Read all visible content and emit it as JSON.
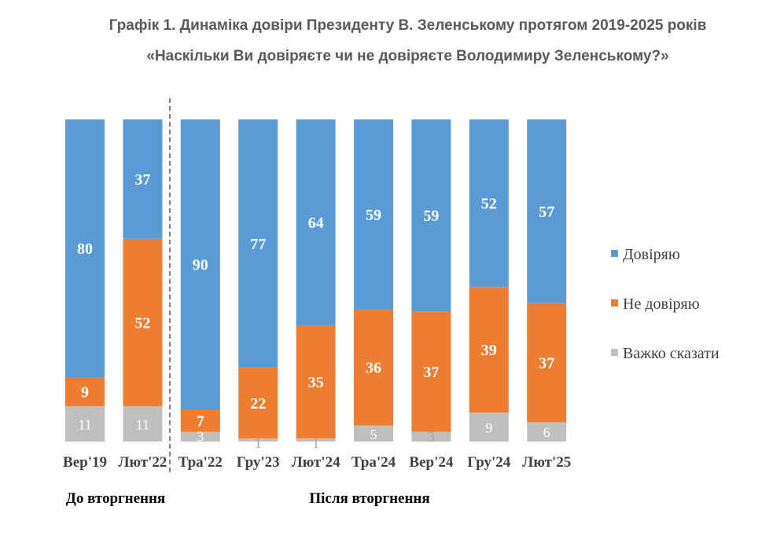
{
  "title": "Графік 1. Динаміка довіри Президенту В. Зеленському протягом 2019-2025 років",
  "subtitle": "«Наскільки Ви довіряєте чи не довіряєте Володимиру Зеленському?»",
  "periods": {
    "before": "До вторгнення",
    "after": "Після вторгнення"
  },
  "colors": {
    "trust": "#5B9BD5",
    "distrust": "#ED7D31",
    "hard": "#BFBFBF",
    "divider": "#7f7f7f"
  },
  "chart_data": {
    "type": "bar",
    "stacked": true,
    "percent_stacked": true,
    "categories": [
      "Вер'19",
      "Лют'22",
      "Тра'22",
      "Гру'23",
      "Лют'24",
      "Тра'24",
      "Вер'24",
      "Гру'24",
      "Лют'25"
    ],
    "series": [
      {
        "name": "Важко сказати",
        "values": [
          11,
          11,
          3,
          1,
          1,
          5,
          3,
          9,
          6
        ]
      },
      {
        "name": "Не довіряю",
        "values": [
          9,
          52,
          7,
          22,
          35,
          36,
          37,
          39,
          37
        ]
      },
      {
        "name": "Довіряю",
        "values": [
          80,
          37,
          90,
          77,
          64,
          59,
          59,
          52,
          57
        ]
      }
    ],
    "legend_order": [
      "Довіряю",
      "Не довіряю",
      "Важко сказати"
    ],
    "legend_position": "right",
    "divider_after_category": "Лют'22",
    "grid": false
  }
}
